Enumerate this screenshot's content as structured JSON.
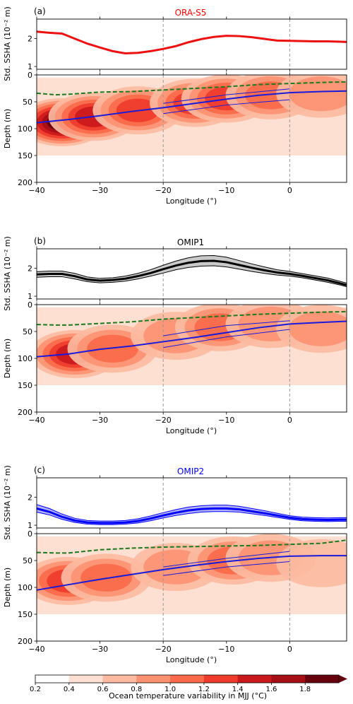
{
  "chart_data": [
    {
      "panel_label": "(a)",
      "title": "ORA-S5",
      "title_color": "#ff0000",
      "type": "line",
      "ylabel": "Std. SSHA (10⁻² m)",
      "ylim": [
        0.9,
        2.7
      ],
      "yticks": [
        "1",
        "2"
      ],
      "xlim": [
        -40,
        9
      ],
      "series": [
        {
          "color": "#ee1111",
          "band": false,
          "x": [
            -40,
            -38,
            -36,
            -34,
            -32,
            -30,
            -28,
            -26,
            -24,
            -22,
            -20,
            -18,
            -16,
            -14,
            -12,
            -10,
            -8,
            -6,
            -4,
            -2,
            0,
            2,
            4,
            6,
            8,
            9
          ],
          "y": [
            2.25,
            2.21,
            2.18,
            2.0,
            1.82,
            1.68,
            1.55,
            1.47,
            1.49,
            1.55,
            1.63,
            1.73,
            1.87,
            1.98,
            2.06,
            2.1,
            2.09,
            2.05,
            1.99,
            1.93,
            1.92,
            1.91,
            1.9,
            1.9,
            1.89,
            1.88
          ],
          "lower": [],
          "upper": []
        }
      ]
    },
    {
      "type": "heatmap",
      "ylabel": "Depth (m)",
      "xlabel": "Longitude (°)",
      "xlim": [
        -40,
        9
      ],
      "ylim": [
        200,
        0
      ],
      "xticks": [
        "−40",
        "−30",
        "−20",
        "−10",
        "0"
      ],
      "yticks": [
        "0",
        "50",
        "100",
        "150",
        "200"
      ],
      "thermocline_lon": [
        -40,
        -35,
        -30,
        -25,
        -20,
        -15,
        -10,
        -5,
        0,
        5,
        9
      ],
      "thermocline_depth": [
        89,
        83,
        76,
        68,
        61,
        53,
        45,
        38,
        33,
        31,
        30
      ],
      "mixed_layer_lon": [
        -40,
        -37,
        -35,
        -30,
        -25,
        -20,
        -15,
        -10,
        -5,
        0,
        5,
        9
      ],
      "mixed_layer_depth": [
        34,
        37,
        36,
        32,
        31,
        28,
        25,
        22,
        18,
        16,
        14,
        13
      ],
      "upper_bound_lon": [
        -20,
        -10,
        0
      ],
      "upper_bound_depth": [
        53,
        37,
        26
      ],
      "lower_bound_lon": [
        -20,
        -10,
        0
      ],
      "lower_bound_depth": [
        72,
        56,
        46
      ],
      "blobs": [
        {
          "lon": -36,
          "depth": 88,
          "value": 1.7
        },
        {
          "lon": -31,
          "depth": 78,
          "value": 1.35
        },
        {
          "lon": -24,
          "depth": 66,
          "value": 1.05
        },
        {
          "lon": -15,
          "depth": 52,
          "value": 1.05
        },
        {
          "lon": -10,
          "depth": 44,
          "value": 1.15
        },
        {
          "lon": -3,
          "depth": 38,
          "value": 0.95
        },
        {
          "lon": 5,
          "depth": 35,
          "value": 0.75
        }
      ]
    },
    {
      "panel_label": "(b)",
      "title": "OMIP1",
      "title_color": "#000000",
      "type": "line",
      "ylabel": "Std. SSHA (10⁻² m)",
      "ylim": [
        0.9,
        2.7
      ],
      "yticks": [
        "1",
        "2"
      ],
      "xlim": [
        -40,
        9
      ],
      "series": [
        {
          "color": "#000000",
          "band": true,
          "band_color": "#c9c9c9",
          "x": [
            -40,
            -38,
            -36,
            -34,
            -32,
            -30,
            -28,
            -26,
            -24,
            -22,
            -20,
            -18,
            -16,
            -14,
            -12,
            -10,
            -8,
            -6,
            -4,
            -2,
            0,
            2,
            4,
            6,
            8,
            9
          ],
          "y": [
            1.78,
            1.8,
            1.8,
            1.72,
            1.6,
            1.56,
            1.58,
            1.63,
            1.72,
            1.83,
            1.97,
            2.1,
            2.2,
            2.26,
            2.27,
            2.22,
            2.12,
            2.02,
            1.93,
            1.85,
            1.8,
            1.73,
            1.65,
            1.57,
            1.46,
            1.4
          ],
          "lower": [
            1.68,
            1.7,
            1.7,
            1.62,
            1.52,
            1.48,
            1.5,
            1.54,
            1.62,
            1.72,
            1.83,
            1.95,
            2.03,
            2.08,
            2.09,
            2.05,
            1.97,
            1.89,
            1.82,
            1.76,
            1.72,
            1.66,
            1.58,
            1.5,
            1.4,
            1.34
          ],
          "upper": [
            1.88,
            1.9,
            1.9,
            1.82,
            1.69,
            1.64,
            1.66,
            1.72,
            1.82,
            1.95,
            2.11,
            2.26,
            2.38,
            2.45,
            2.46,
            2.4,
            2.28,
            2.16,
            2.05,
            1.95,
            1.89,
            1.81,
            1.73,
            1.65,
            1.53,
            1.47
          ]
        }
      ]
    },
    {
      "type": "heatmap",
      "ylabel": "Depth (m)",
      "xlabel": "Longitude (°)",
      "xlim": [
        -40,
        9
      ],
      "ylim": [
        200,
        0
      ],
      "xticks": [
        "−40",
        "−30",
        "−20",
        "−10",
        "0"
      ],
      "yticks": [
        "0",
        "50",
        "100",
        "150",
        "200"
      ],
      "thermocline_lon": [
        -40,
        -35,
        -30,
        -25,
        -20,
        -15,
        -10,
        -5,
        0,
        5,
        9
      ],
      "thermocline_depth": [
        97,
        92,
        83,
        77,
        69,
        61,
        52,
        43,
        36,
        33,
        31
      ],
      "mixed_layer_lon": [
        -40,
        -37,
        -35,
        -30,
        -25,
        -20,
        -15,
        -10,
        -5,
        0,
        5,
        9
      ],
      "mixed_layer_depth": [
        37,
        38,
        38,
        35,
        32,
        27,
        24,
        21,
        18,
        16,
        14,
        13
      ],
      "upper_bound_lon": [
        -20,
        -10,
        0
      ],
      "upper_bound_depth": [
        58,
        39,
        30
      ],
      "lower_bound_lon": [
        -20,
        -10,
        0
      ],
      "lower_bound_depth": [
        80,
        60,
        46
      ],
      "blobs": [
        {
          "lon": -34,
          "depth": 92,
          "value": 1.25
        },
        {
          "lon": -28,
          "depth": 82,
          "value": 0.95
        },
        {
          "lon": -18,
          "depth": 58,
          "value": 0.75
        },
        {
          "lon": -11,
          "depth": 42,
          "value": 0.95
        },
        {
          "lon": -3,
          "depth": 36,
          "value": 0.75
        },
        {
          "lon": 5,
          "depth": 45,
          "value": 0.6
        }
      ]
    },
    {
      "panel_label": "(c)",
      "title": "OMIP2",
      "title_color": "#0000ff",
      "type": "line",
      "ylabel": "Std. SSHA (10⁻² m)",
      "ylim": [
        0.9,
        2.7
      ],
      "yticks": [
        "1",
        "2"
      ],
      "xlim": [
        -40,
        9
      ],
      "series": [
        {
          "color": "#0000ff",
          "band": true,
          "band_color": "#b3b3f5",
          "x": [
            -40,
            -38,
            -36,
            -34,
            -32,
            -30,
            -28,
            -26,
            -24,
            -22,
            -20,
            -18,
            -16,
            -14,
            -12,
            -10,
            -8,
            -6,
            -4,
            -2,
            0,
            2,
            4,
            6,
            8,
            9
          ],
          "y": [
            1.6,
            1.48,
            1.3,
            1.17,
            1.1,
            1.08,
            1.08,
            1.1,
            1.15,
            1.24,
            1.35,
            1.45,
            1.53,
            1.58,
            1.6,
            1.6,
            1.57,
            1.5,
            1.43,
            1.35,
            1.27,
            1.22,
            1.2,
            1.19,
            1.2,
            1.2
          ],
          "lower": [
            1.47,
            1.37,
            1.21,
            1.1,
            1.04,
            1.02,
            1.02,
            1.04,
            1.08,
            1.16,
            1.26,
            1.35,
            1.42,
            1.47,
            1.49,
            1.49,
            1.47,
            1.41,
            1.35,
            1.28,
            1.21,
            1.16,
            1.14,
            1.13,
            1.14,
            1.14
          ],
          "upper": [
            1.74,
            1.6,
            1.4,
            1.25,
            1.17,
            1.15,
            1.15,
            1.17,
            1.23,
            1.33,
            1.45,
            1.56,
            1.65,
            1.7,
            1.72,
            1.72,
            1.68,
            1.6,
            1.52,
            1.43,
            1.34,
            1.29,
            1.27,
            1.26,
            1.27,
            1.27
          ]
        }
      ]
    },
    {
      "type": "heatmap",
      "ylabel": "Depth (m)",
      "xlabel": "Longitude (°)",
      "xlim": [
        -40,
        9
      ],
      "ylim": [
        200,
        0
      ],
      "xticks": [
        "−40",
        "−30",
        "−20",
        "−10",
        "0"
      ],
      "yticks": [
        "0",
        "50",
        "100",
        "150",
        "200"
      ],
      "thermocline_lon": [
        -40,
        -35,
        -30,
        -25,
        -20,
        -15,
        -10,
        -5,
        0,
        5,
        9
      ],
      "thermocline_depth": [
        105,
        95,
        85,
        76,
        67,
        59,
        52,
        46,
        42,
        41,
        41
      ],
      "mixed_layer_lon": [
        -40,
        -37,
        -35,
        -30,
        -25,
        -20,
        -15,
        -10,
        -5,
        0,
        5,
        9
      ],
      "mixed_layer_depth": [
        35,
        36,
        36,
        30,
        27,
        25,
        24,
        23,
        22,
        20,
        18,
        12
      ],
      "upper_bound_lon": [
        -20,
        -10,
        0
      ],
      "upper_bound_depth": [
        62,
        46,
        33
      ],
      "lower_bound_lon": [
        -20,
        -10,
        0
      ],
      "lower_bound_depth": [
        78,
        62,
        52
      ],
      "blobs": [
        {
          "lon": -35,
          "depth": 88,
          "value": 1.15
        },
        {
          "lon": -29,
          "depth": 82,
          "value": 0.8
        },
        {
          "lon": -18,
          "depth": 62,
          "value": 0.65
        },
        {
          "lon": -9,
          "depth": 50,
          "value": 0.85
        },
        {
          "lon": -3,
          "depth": 45,
          "value": 0.7
        },
        {
          "lon": 5,
          "depth": 55,
          "value": 0.55
        }
      ]
    }
  ],
  "colorbar": {
    "label": "Ocean temperature variability in MJJ (°C)",
    "ticks": [
      "0.2",
      "0.4",
      "0.6",
      "0.8",
      "1.0",
      "1.2",
      "1.4",
      "1.6",
      "1.8"
    ],
    "levels": [
      0.2,
      0.4,
      0.6,
      0.8,
      1.0,
      1.2,
      1.4,
      1.6,
      1.8
    ],
    "colors": [
      "#ffffff",
      "#fde0d2",
      "#fcbba1",
      "#fc9272",
      "#fb6a4a",
      "#ef3b2c",
      "#cb181d",
      "#a50f15",
      "#67000d"
    ]
  },
  "reference_lines": {
    "lon": [
      -20,
      0
    ],
    "color": "#999999"
  },
  "colors": {
    "thermocline": "#1a1adb",
    "mixed_layer": "#1f7a1f"
  }
}
